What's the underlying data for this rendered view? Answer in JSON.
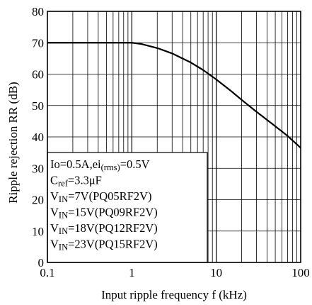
{
  "chart_data": {
    "type": "line",
    "xscale": "log",
    "xlim": [
      0.1,
      100
    ],
    "ylim": [
      0,
      80
    ],
    "grid": true,
    "xlabel": "Input ripple frequency f (kHz)",
    "ylabel": "Ripple rejection RR (dB)",
    "x_ticks": [
      0.1,
      1,
      10,
      100
    ],
    "x_tick_labels": [
      "0.1",
      "1",
      "10",
      "100"
    ],
    "y_ticks": [
      0,
      10,
      20,
      30,
      40,
      50,
      60,
      70,
      80
    ],
    "y_tick_labels": [
      "0",
      "10",
      "20",
      "30",
      "40",
      "50",
      "60",
      "70",
      "80"
    ],
    "legend_position": "bottom-left",
    "conditions": [
      {
        "main": "Io=0.5A,ei",
        "sub": "(rms)",
        "tail": "=0.5V"
      },
      {
        "main": "C",
        "sub": "ref",
        "tail": "=3.3μF"
      },
      {
        "main": "V",
        "sub": "IN",
        "tail": "=7V(PQ05RF2V)"
      },
      {
        "main": "V",
        "sub": "IN",
        "tail": "=15V(PQ09RF2V)"
      },
      {
        "main": "V",
        "sub": "IN",
        "tail": "=18V(PQ12RF2V)"
      },
      {
        "main": "V",
        "sub": "IN",
        "tail": "=23V(PQ15RF2V)"
      }
    ],
    "series": [
      {
        "x": [
          0.1,
          0.3,
          0.6,
          1.0,
          1.3,
          2.0,
          3.0,
          5.0,
          7.0,
          10.0,
          15.0,
          20.0,
          30.0,
          50.0,
          70.0,
          100.0
        ],
        "y": [
          70,
          70,
          70,
          70,
          69.6,
          68.3,
          66.6,
          63.7,
          61.3,
          58.3,
          54.6,
          51.8,
          48.0,
          43.4,
          40.3,
          36.5
        ]
      }
    ]
  }
}
